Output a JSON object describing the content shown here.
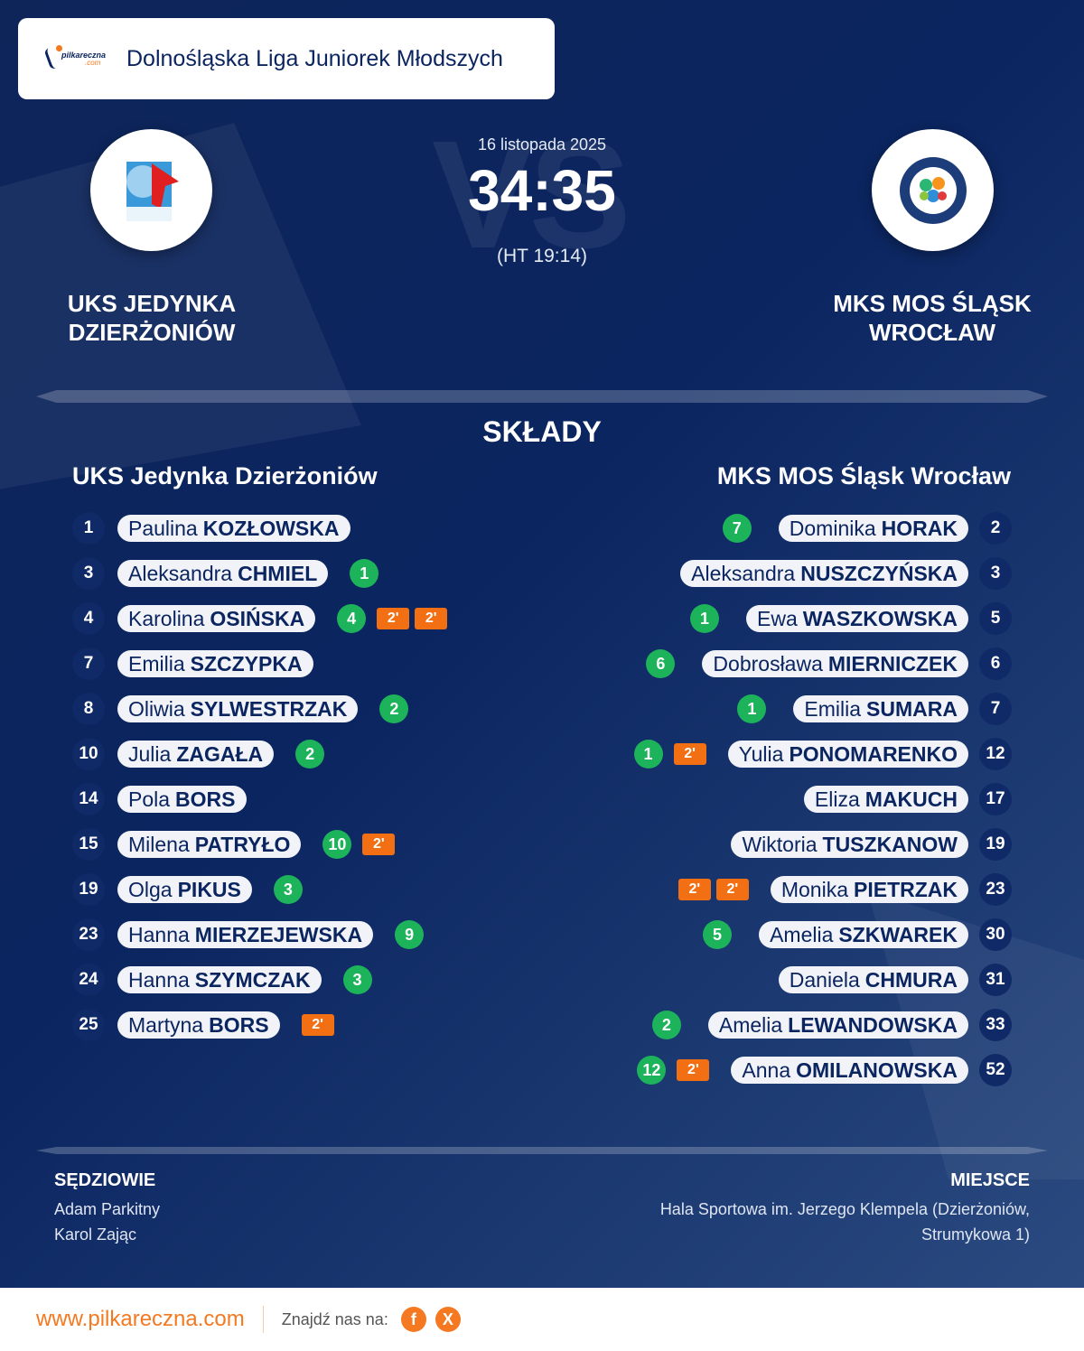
{
  "header": {
    "logo_text": "pilkareczna",
    "logo_sub": ".com",
    "league": "Dolnośląska Liga Juniorek Młodszych"
  },
  "match": {
    "date": "16 listopada 2025",
    "score": "34:35",
    "halftime": "(HT 19:14)",
    "vs_watermark": "VS"
  },
  "home": {
    "name_line1": "UKS JEDYNKA",
    "name_line2": "DZIERŻONIÓW",
    "lineup_title": "UKS Jedynka Dzierżoniów",
    "players": [
      {
        "num": "1",
        "first": "Paulina",
        "last": "KOZŁOWSKA",
        "goals": null,
        "susp": []
      },
      {
        "num": "3",
        "first": "Aleksandra",
        "last": "CHMIEL",
        "goals": "1",
        "susp": []
      },
      {
        "num": "4",
        "first": "Karolina",
        "last": "OSIŃSKA",
        "goals": "4",
        "susp": [
          "2'",
          "2'"
        ]
      },
      {
        "num": "7",
        "first": "Emilia",
        "last": "SZCZYPKA",
        "goals": null,
        "susp": []
      },
      {
        "num": "8",
        "first": "Oliwia",
        "last": "SYLWESTRZAK",
        "goals": "2",
        "susp": []
      },
      {
        "num": "10",
        "first": "Julia",
        "last": "ZAGAŁA",
        "goals": "2",
        "susp": []
      },
      {
        "num": "14",
        "first": "Pola",
        "last": "BORS",
        "goals": null,
        "susp": []
      },
      {
        "num": "15",
        "first": "Milena",
        "last": "PATRYŁO",
        "goals": "10",
        "susp": [
          "2'"
        ]
      },
      {
        "num": "19",
        "first": "Olga",
        "last": "PIKUS",
        "goals": "3",
        "susp": []
      },
      {
        "num": "23",
        "first": "Hanna",
        "last": "MIERZEJEWSKA",
        "goals": "9",
        "susp": []
      },
      {
        "num": "24",
        "first": "Hanna",
        "last": "SZYMCZAK",
        "goals": "3",
        "susp": []
      },
      {
        "num": "25",
        "first": "Martyna",
        "last": "BORS",
        "goals": null,
        "susp": [
          "2'"
        ]
      }
    ]
  },
  "away": {
    "name_line1": "MKS MOS ŚLĄSK",
    "name_line2": "WROCŁAW",
    "lineup_title": "MKS MOS Śląsk Wrocław",
    "players": [
      {
        "num": "2",
        "first": "Dominika",
        "last": "HORAK",
        "goals": "7",
        "susp": []
      },
      {
        "num": "3",
        "first": "Aleksandra",
        "last": "NUSZCZYŃSKA",
        "goals": null,
        "susp": []
      },
      {
        "num": "5",
        "first": "Ewa",
        "last": "WASZKOWSKA",
        "goals": "1",
        "susp": []
      },
      {
        "num": "6",
        "first": "Dobrosława",
        "last": "MIERNICZEK",
        "goals": "6",
        "susp": []
      },
      {
        "num": "7",
        "first": "Emilia",
        "last": "SUMARA",
        "goals": "1",
        "susp": []
      },
      {
        "num": "12",
        "first": "Yulia",
        "last": "PONOMARENKO",
        "goals": "1",
        "susp": [
          "2'"
        ]
      },
      {
        "num": "17",
        "first": "Eliza",
        "last": "MAKUCH",
        "goals": null,
        "susp": []
      },
      {
        "num": "19",
        "first": "Wiktoria",
        "last": "TUSZKANOW",
        "goals": null,
        "susp": []
      },
      {
        "num": "23",
        "first": "Monika",
        "last": "PIETRZAK",
        "goals": null,
        "susp": [
          "2'",
          "2'"
        ]
      },
      {
        "num": "30",
        "first": "Amelia",
        "last": "SZKWAREK",
        "goals": "5",
        "susp": []
      },
      {
        "num": "31",
        "first": "Daniela",
        "last": "CHMURA",
        "goals": null,
        "susp": []
      },
      {
        "num": "33",
        "first": "Amelia",
        "last": "LEWANDOWSKA",
        "goals": "2",
        "susp": []
      },
      {
        "num": "52",
        "first": "Anna",
        "last": "OMILANOWSKA",
        "goals": "12",
        "susp": [
          "2'"
        ]
      }
    ]
  },
  "lineups_title": "SKŁADY",
  "referees": {
    "title": "SĘDZIOWIE",
    "names": [
      "Adam Parkitny",
      "Karol Zając"
    ]
  },
  "venue": {
    "title": "MIEJSCE",
    "line1": "Hala Sportowa im. Jerzego Klempela (Dzierżoniów,",
    "line2": "Strumykowa 1)"
  },
  "footer": {
    "url": "www.pilkareczna.com",
    "find_us": "Znajdź nas na:",
    "facebook": "f",
    "x": "X"
  },
  "colors": {
    "navy": "#0b2560",
    "goal": "#1db35a",
    "suspension": "#f36f14",
    "brand_orange": "#f47920"
  }
}
